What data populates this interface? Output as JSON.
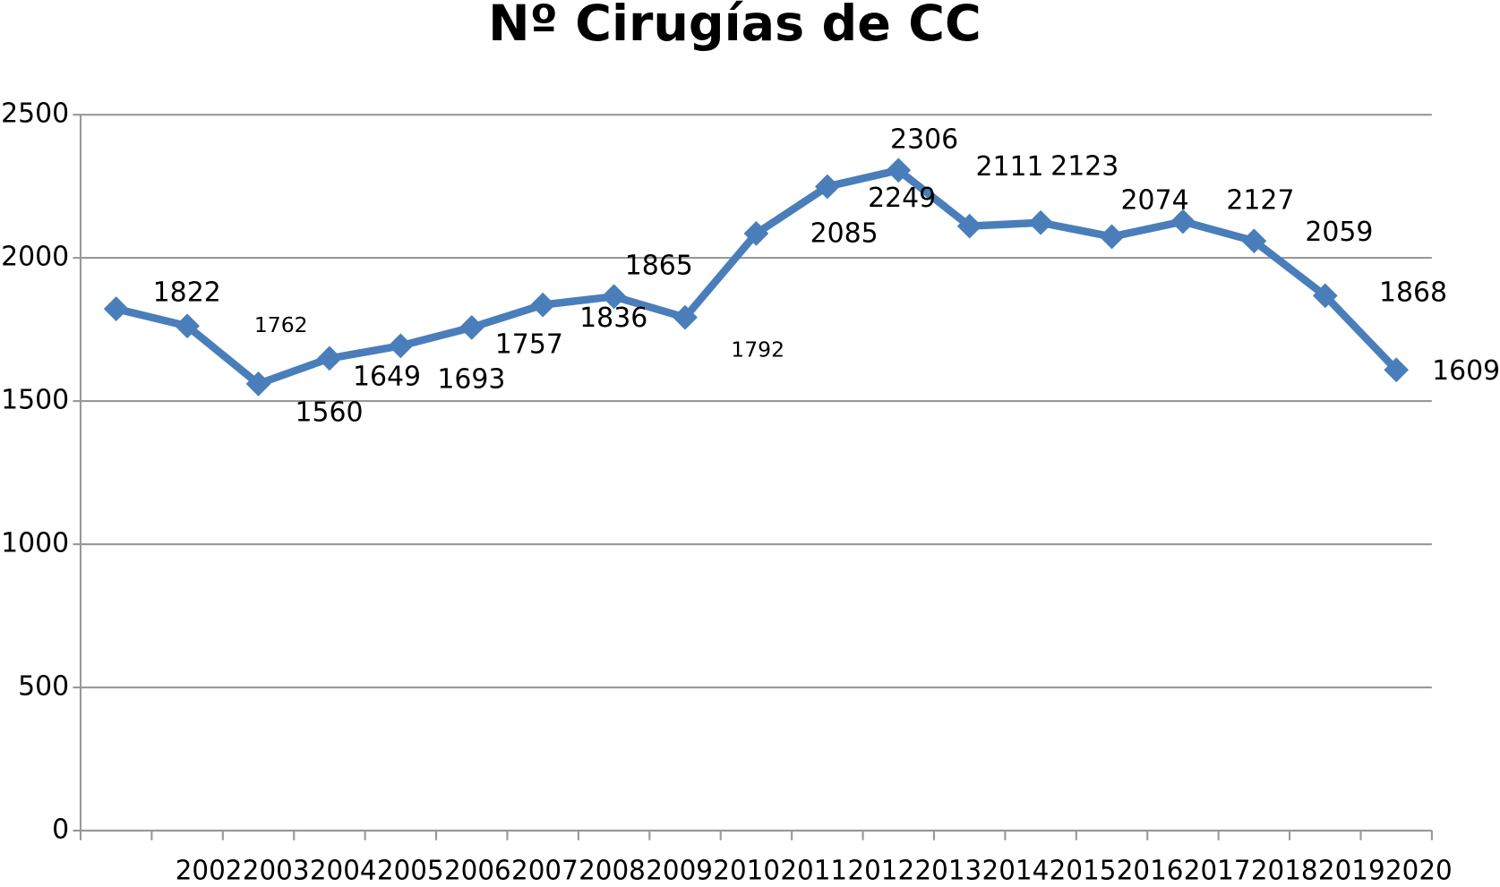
{
  "chart_data": {
    "type": "line",
    "title": "Nº Cirugías de CC",
    "categories": [
      "2002",
      "2003",
      "2004",
      "2005",
      "2006",
      "2007",
      "2008",
      "2009",
      "2010",
      "2011",
      "2012",
      "2013",
      "2014",
      "2015",
      "2016",
      "2017",
      "2018",
      "2019",
      "2020"
    ],
    "series": [
      {
        "name": "Nº Cirugías",
        "color": "#4a7ebb",
        "values": [
          1822,
          1762,
          1560,
          1649,
          1693,
          1757,
          1836,
          1865,
          1792,
          2085,
          2249,
          2306,
          2111,
          2123,
          2074,
          2127,
          2059,
          1868,
          1609
        ]
      }
    ],
    "ylim": [
      0,
      2500
    ],
    "yticks": [
      0,
      500,
      1000,
      1500,
      2000,
      2500
    ],
    "grid": true
  }
}
